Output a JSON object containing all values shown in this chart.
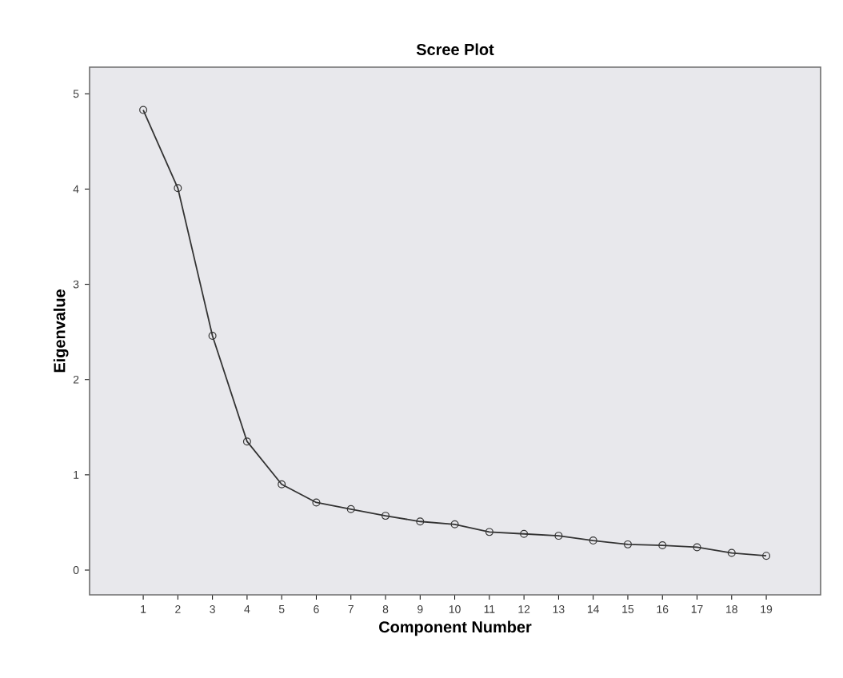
{
  "chart_data": {
    "type": "line",
    "title": "Scree Plot",
    "xlabel": "Component Number",
    "ylabel": "Eigenvalue",
    "x": [
      1,
      2,
      3,
      4,
      5,
      6,
      7,
      8,
      9,
      10,
      11,
      12,
      13,
      14,
      15,
      16,
      17,
      18,
      19
    ],
    "series": [
      {
        "color": "#333333",
        "values": [
          4.83,
          4.01,
          2.46,
          1.35,
          0.9,
          0.71,
          0.64,
          0.57,
          0.51,
          0.48,
          0.4,
          0.38,
          0.36,
          0.31,
          0.27,
          0.26,
          0.24,
          0.18,
          0.15
        ]
      }
    ],
    "xlim": [
      -0.55,
      20.57
    ],
    "ylim": [
      -0.26,
      5.28
    ],
    "xticks": [
      1,
      2,
      3,
      4,
      5,
      6,
      7,
      8,
      9,
      10,
      11,
      12,
      13,
      14,
      15,
      16,
      17,
      18,
      19
    ],
    "yticks": [
      0,
      1,
      2,
      3,
      4,
      5
    ],
    "grid": false,
    "marker": "circle",
    "line_style": "solid"
  }
}
